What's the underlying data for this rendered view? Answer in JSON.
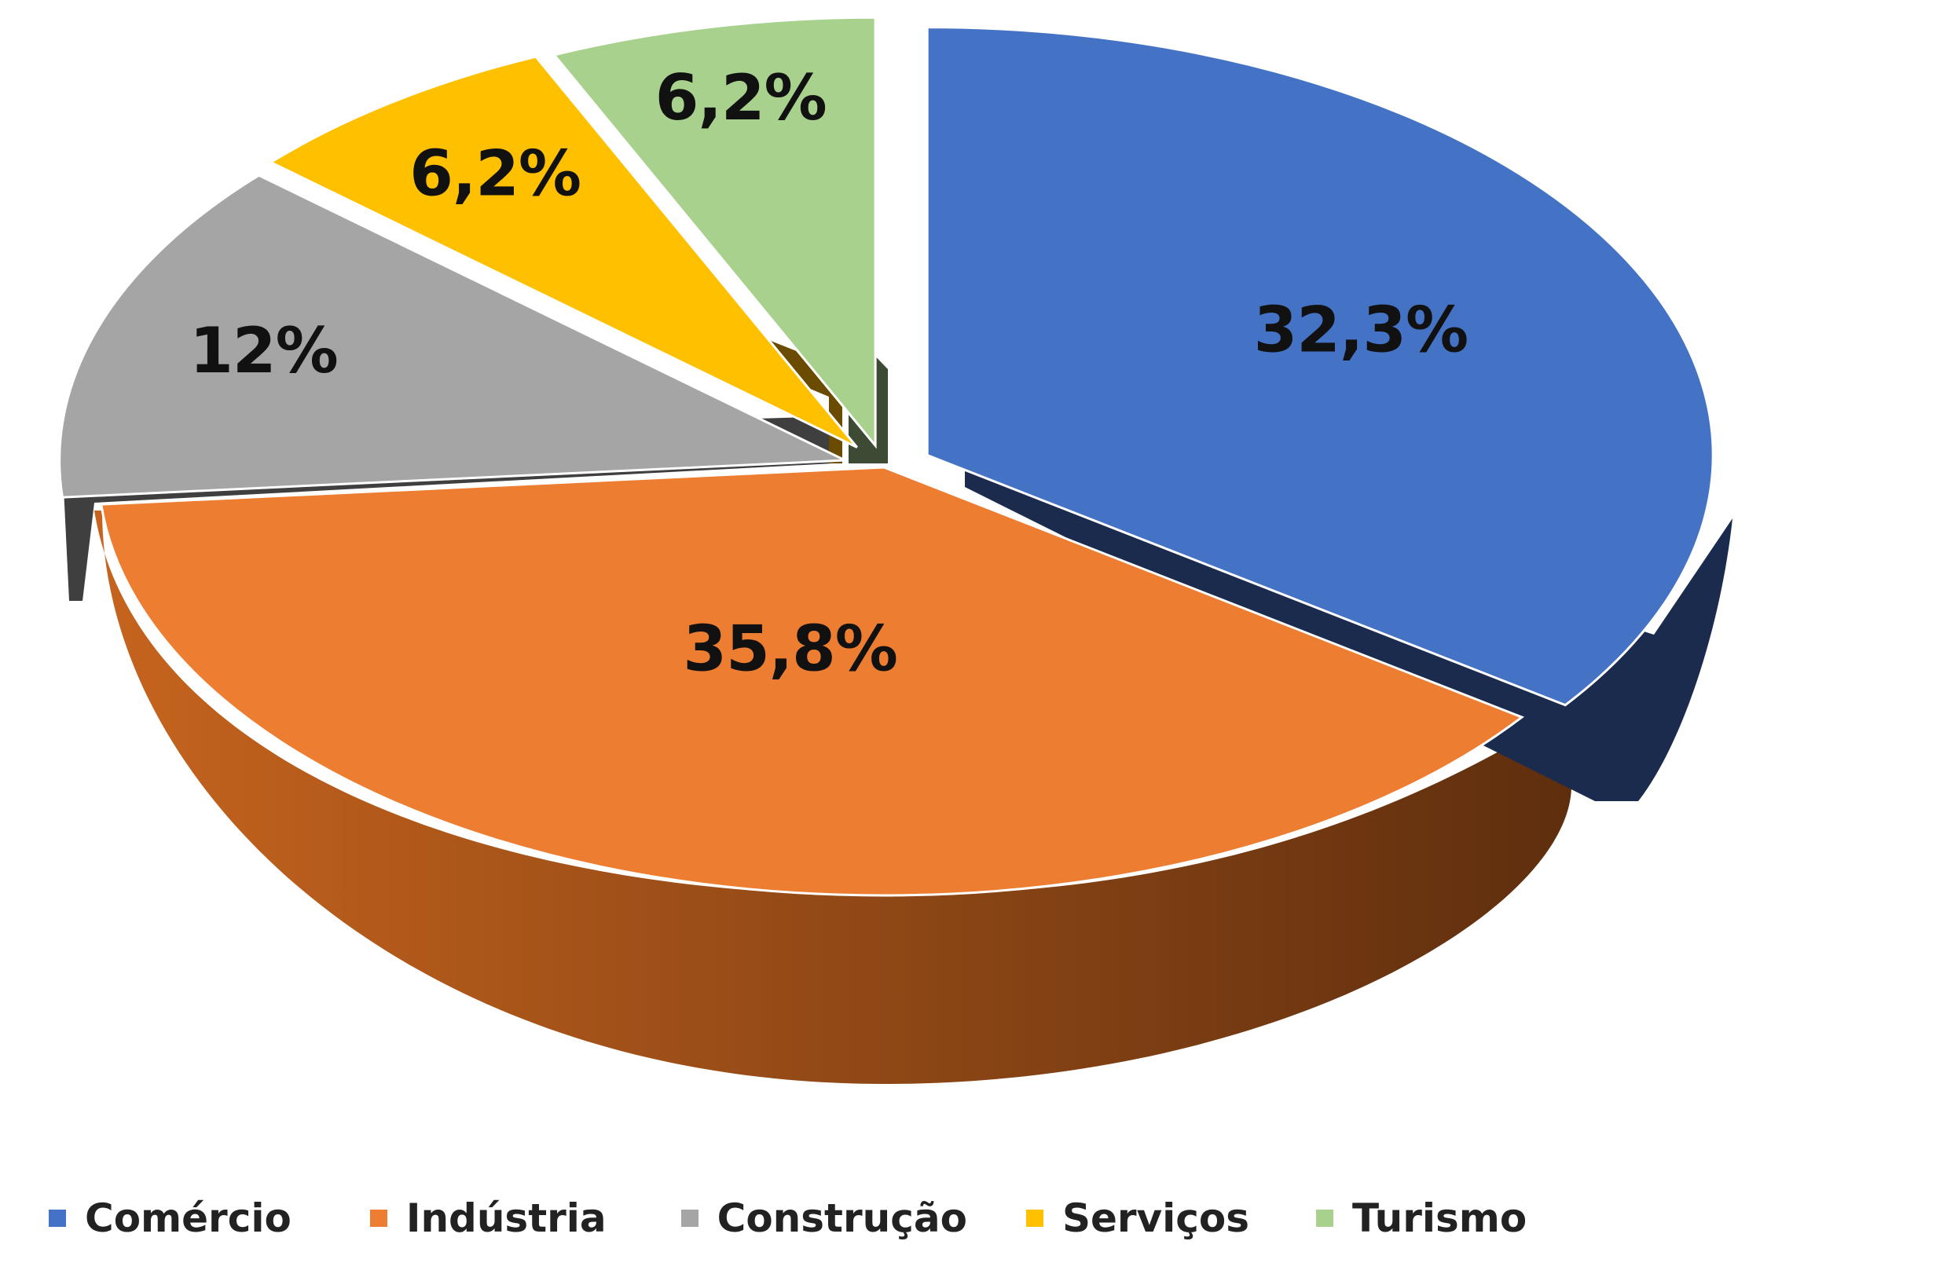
{
  "chart_data": {
    "type": "pie",
    "style": "3d-exploded",
    "title": "",
    "categories": [
      "Comércio",
      "Indústria",
      "Construção",
      "Serviços",
      "Turismo"
    ],
    "values": [
      32.3,
      35.8,
      12,
      6.2,
      6.2
    ],
    "labels": [
      "32,3%",
      "35,8%",
      "12%",
      "6,2%",
      "6,2%"
    ],
    "colors": [
      "#4472C4",
      "#ED7D31",
      "#A5A5A5",
      "#FFC000",
      "#A9D18E"
    ],
    "legend_position": "bottom"
  }
}
